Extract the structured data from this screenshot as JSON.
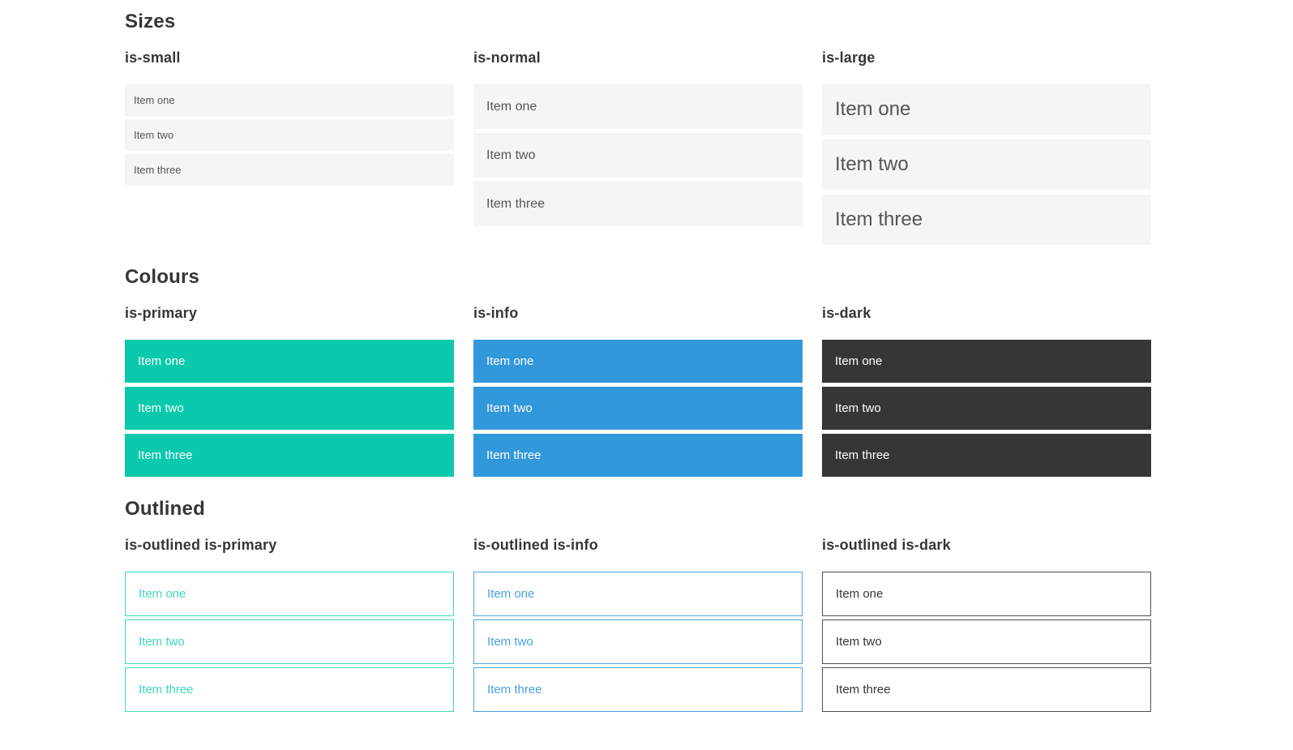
{
  "colors": {
    "primary": "#0bc9ad",
    "info": "#3298dc",
    "dark": "#363636",
    "primary_outline": "#3fd9c0",
    "info_outline": "#4aa2e0",
    "dark_outline_border": "#4f4f4f",
    "item_bg": "#f5f5f5",
    "item_text": "#555555",
    "heading_text": "#363636"
  },
  "sections": [
    {
      "title": "Sizes",
      "groups": [
        {
          "label": "is-small",
          "variant": "small",
          "items": [
            "Item one",
            "Item two",
            "Item three"
          ]
        },
        {
          "label": "is-normal",
          "variant": "normal",
          "items": [
            "Item one",
            "Item two",
            "Item three"
          ]
        },
        {
          "label": "is-large",
          "variant": "large",
          "items": [
            "Item one",
            "Item two",
            "Item three"
          ]
        }
      ]
    },
    {
      "title": "Colours",
      "groups": [
        {
          "label": "is-primary",
          "variant": "primary",
          "items": [
            "Item one",
            "Item two",
            "Item three"
          ]
        },
        {
          "label": "is-info",
          "variant": "info",
          "items": [
            "Item one",
            "Item two",
            "Item three"
          ]
        },
        {
          "label": "is-dark",
          "variant": "dark",
          "items": [
            "Item one",
            "Item two",
            "Item three"
          ]
        }
      ]
    },
    {
      "title": "Outlined",
      "groups": [
        {
          "label": "is-outlined is-primary",
          "variant": "outlined-primary",
          "items": [
            "Item one",
            "Item two",
            "Item three"
          ]
        },
        {
          "label": "is-outlined is-info",
          "variant": "outlined-info",
          "items": [
            "Item one",
            "Item two",
            "Item three"
          ]
        },
        {
          "label": "is-outlined is-dark",
          "variant": "outlined-dark",
          "items": [
            "Item one",
            "Item two",
            "Item three"
          ]
        }
      ]
    }
  ]
}
